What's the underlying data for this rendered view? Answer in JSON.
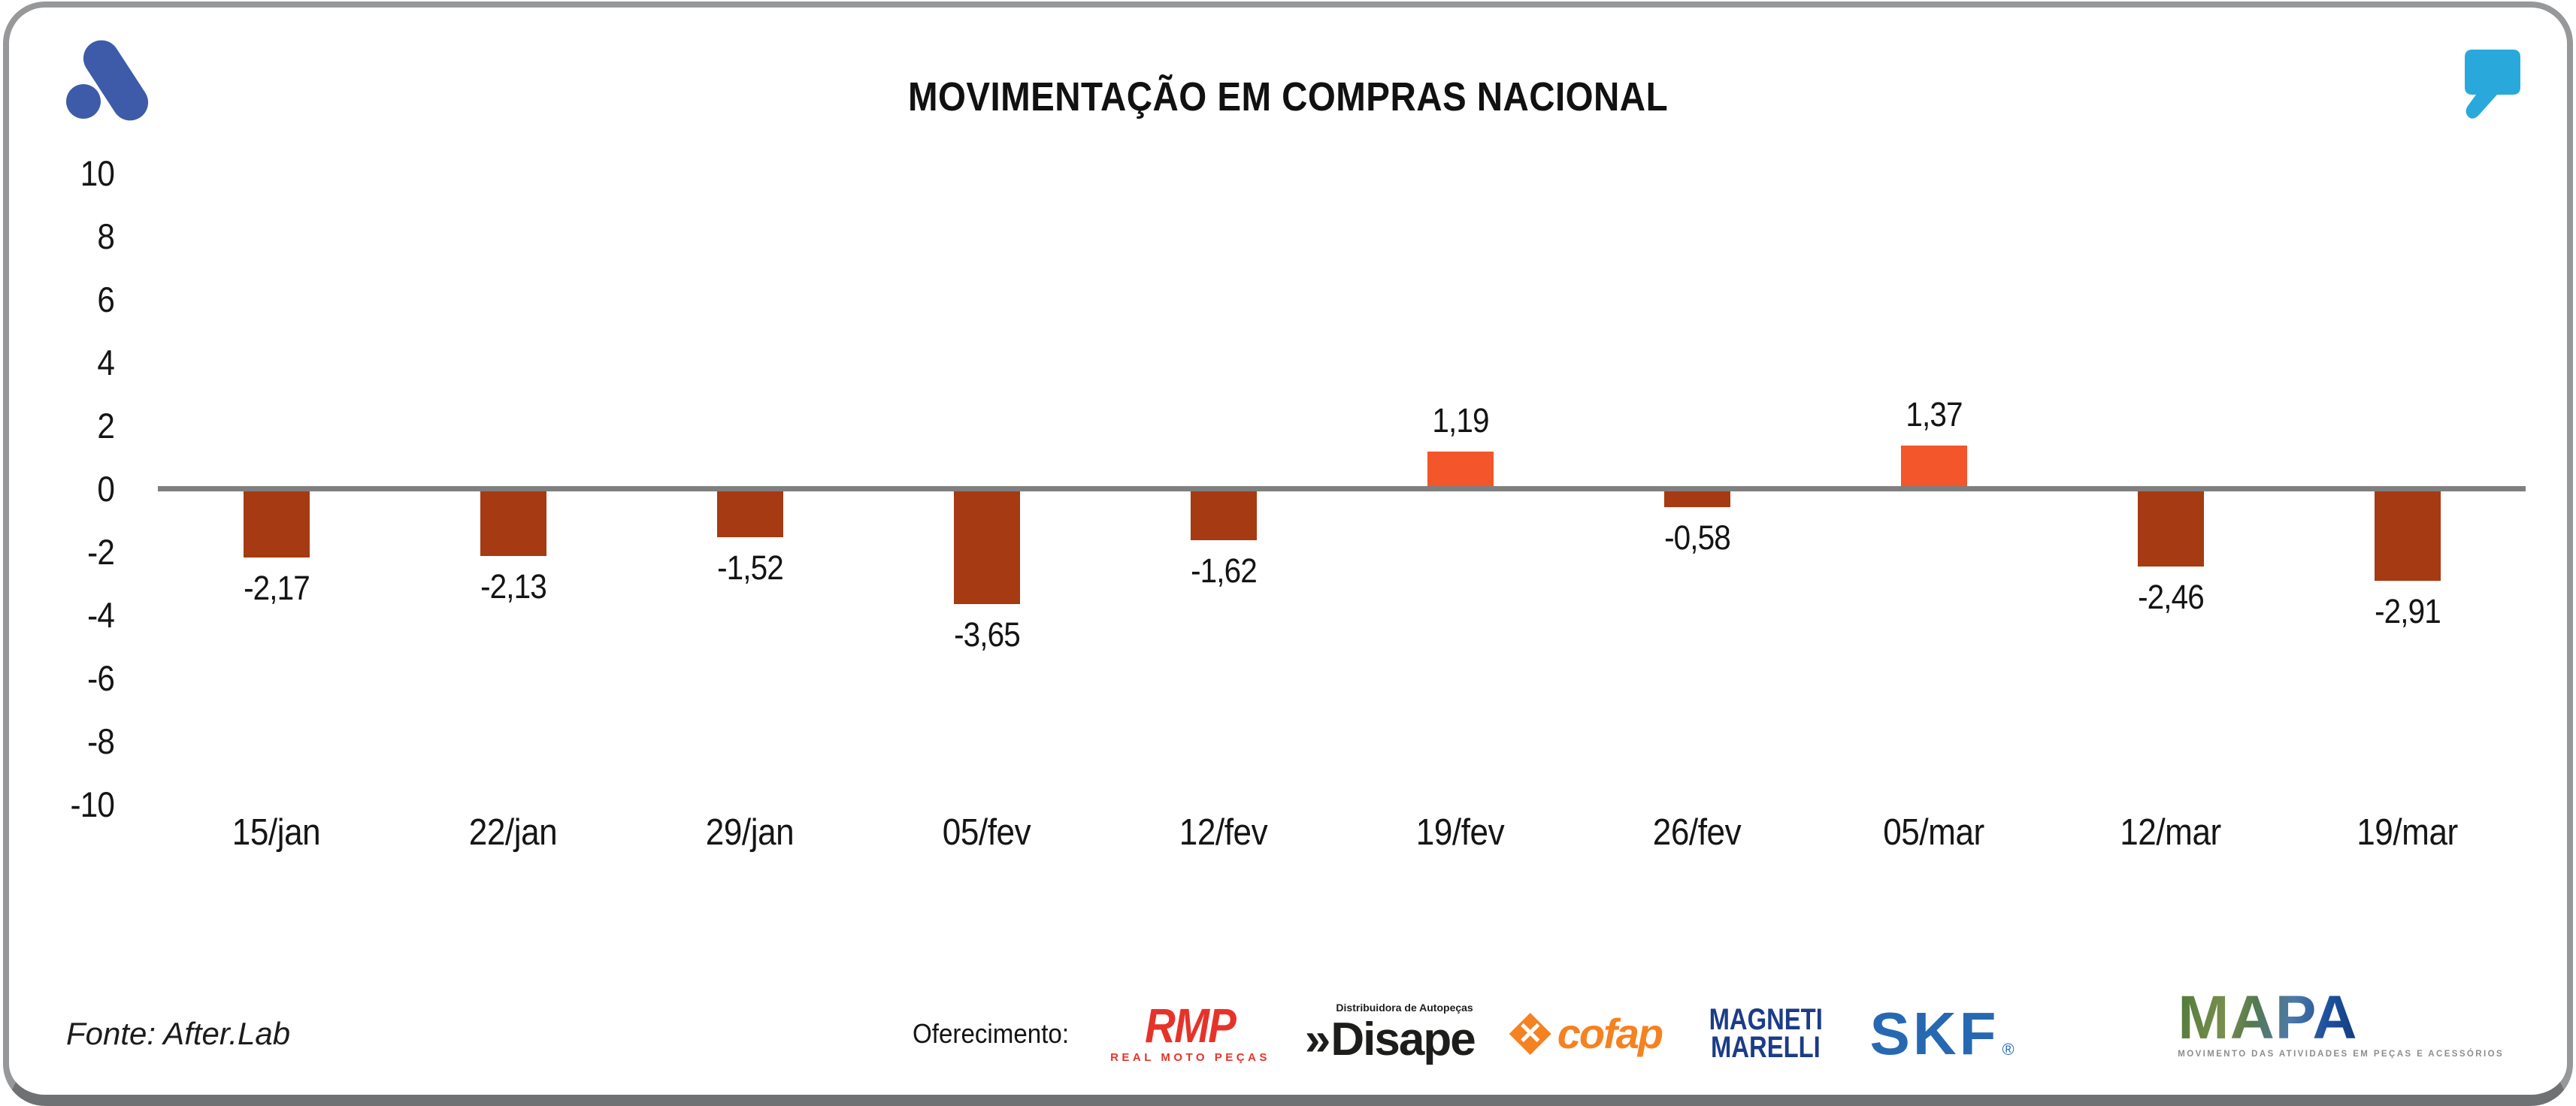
{
  "header": {
    "title": "MOVIMENTAÇÃO EM COMPRAS NACIONAL"
  },
  "icons": {
    "brand_logo": "afterlab-a-logo",
    "corner_icon": "quote-mark-icon",
    "cofap_mark": "x-diamond-icon"
  },
  "chart_data": {
    "type": "bar",
    "title": "MOVIMENTAÇÃO EM COMPRAS NACIONAL",
    "categories": [
      "15/jan",
      "22/jan",
      "29/jan",
      "05/fev",
      "12/fev",
      "19/fev",
      "26/fev",
      "05/mar",
      "12/mar",
      "19/mar"
    ],
    "values": [
      -2.17,
      -2.13,
      -1.52,
      -3.65,
      -1.62,
      1.19,
      -0.58,
      1.37,
      -2.46,
      -2.91
    ],
    "value_labels": [
      "-2,17",
      "-2,13",
      "-1,52",
      "-3,65",
      "-1,62",
      "1,19",
      "-0,58",
      "1,37",
      "-2,46",
      "-2,91"
    ],
    "xlabel": "",
    "ylabel": "",
    "ylim": [
      -10,
      10
    ],
    "y_tick_labels": [
      "10",
      "8",
      "6",
      "4",
      "2",
      "0",
      "-2",
      "-4",
      "-6",
      "-8",
      "-10"
    ],
    "grid": false,
    "legend": false,
    "colors": {
      "positive_bar": "#F3562A",
      "negative_bar": "#A63A12",
      "axis_line": "#7f7f7f",
      "brand_blue": "#3D5BA9",
      "quote_teal": "#29A9DB"
    }
  },
  "footer": {
    "source": "Fonte: After.Lab",
    "sponsors_label": "Oferecimento:",
    "sponsors": [
      {
        "name": "RMP",
        "subtitle": "REAL MOTO PEÇAS",
        "color": "#E6332A"
      },
      {
        "name": "Disape",
        "prefix": "»",
        "subtitle": "Distribuidora de Autopeças",
        "color": "#1d1d1b"
      },
      {
        "name": "cofap",
        "color": "#F58220"
      },
      {
        "name_line1": "MAGNETI",
        "name_line2": "MARELLI",
        "color": "#1B3C87"
      },
      {
        "name": "SKF",
        "registered": "®",
        "color": "#2669B2"
      }
    ],
    "mapa": {
      "name": "MAPA",
      "subtitle": "MOVIMENTO DAS ATIVIDADES EM PEÇAS E ACESSÓRIOS"
    }
  }
}
